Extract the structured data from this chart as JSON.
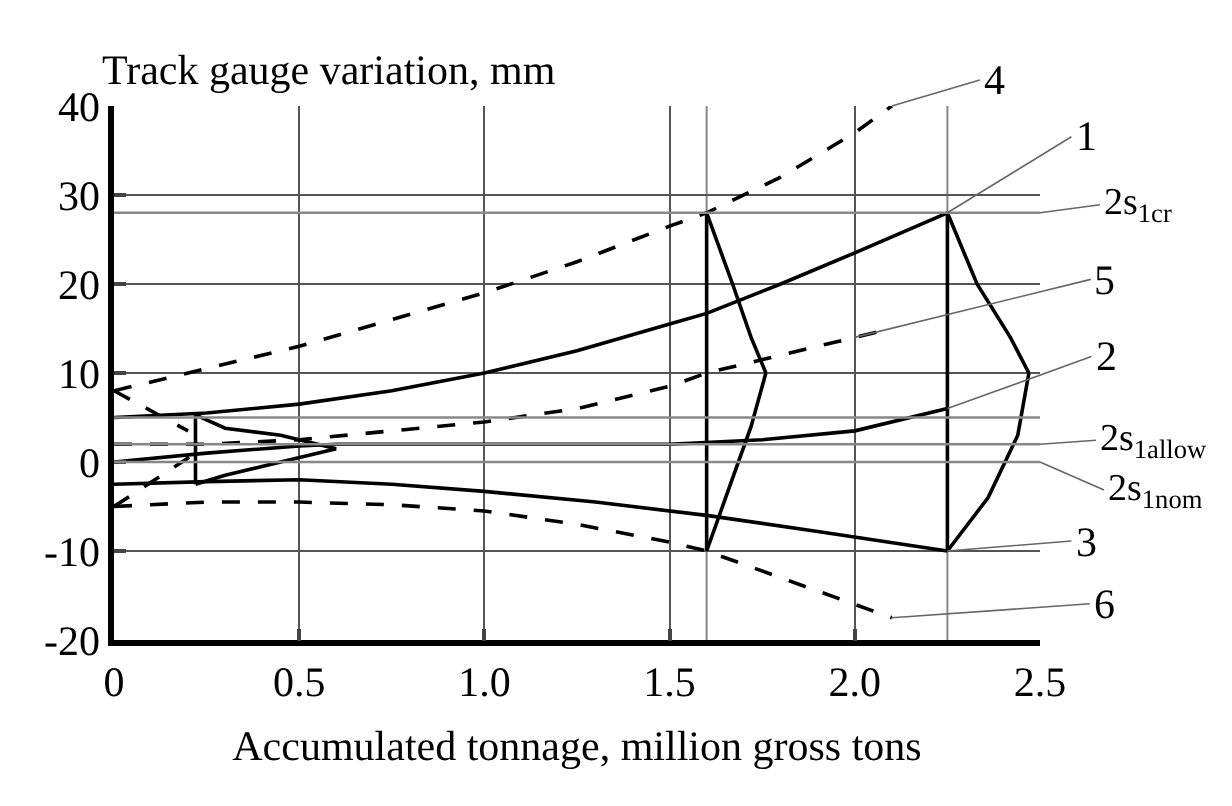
{
  "chart_data": {
    "type": "line",
    "ylabel": "Track gauge variation, mm",
    "xlabel": "Accumulated tonnage, million gross tons",
    "xlim": [
      0,
      2.5
    ],
    "ylim": [
      -20,
      40
    ],
    "xticks": [
      0,
      0.5,
      {
        "value": 1,
        "label": "1.0"
      },
      1.5,
      {
        "value": 2,
        "label": "2.0"
      },
      2.5
    ],
    "yticks": [
      -20,
      -10,
      0,
      10,
      20,
      30,
      40
    ],
    "grid": true,
    "marker": "none",
    "series": [
      {
        "color": "#000000",
        "line_style": "dashed",
        "x": [
          0,
          0.25,
          0.5,
          0.75,
          1.0,
          1.25,
          1.5,
          1.6,
          1.8,
          2.0,
          2.1
        ],
        "values": [
          8,
          10.5,
          13,
          16,
          19,
          22.5,
          26.5,
          28,
          32,
          37,
          40
        ]
      },
      {
        "color": "#000000",
        "line_style": "solid",
        "x": [
          0,
          0.25,
          0.5,
          0.75,
          1.0,
          1.25,
          1.5,
          1.6,
          1.8,
          2.0,
          2.25
        ],
        "values": [
          5,
          5.5,
          6.5,
          8,
          10,
          12.5,
          15.5,
          16.7,
          20,
          23.5,
          28
        ]
      },
      {
        "color": "#000000",
        "line_style": "dashed",
        "x": [
          0,
          0.25,
          0.5,
          0.75,
          1.0,
          1.25,
          1.5,
          1.6,
          1.8,
          2.0,
          2.1
        ],
        "values": [
          2,
          2,
          2.5,
          3.5,
          4.5,
          6,
          8.5,
          10,
          12,
          14,
          15
        ]
      },
      {
        "color": "#000000",
        "line_style": "solid",
        "x": [
          0,
          0.25,
          0.5,
          0.6,
          1.0,
          1.5,
          1.75,
          2.0,
          2.25
        ],
        "values": [
          0,
          1,
          1.8,
          2,
          2,
          2,
          2.5,
          3.5,
          6
        ]
      },
      {
        "color": "#000000",
        "line_style": "solid",
        "x": [
          0,
          0.25,
          0.5,
          0.75,
          1.0,
          1.3,
          1.6,
          1.9,
          2.25
        ],
        "values": [
          -2.5,
          -2.2,
          -2,
          -2.5,
          -3.3,
          -4.5,
          -6,
          -7.8,
          -10
        ]
      },
      {
        "color": "#000000",
        "line_style": "dashed",
        "x": [
          0,
          0.25,
          0.5,
          0.75,
          1.0,
          1.25,
          1.5,
          1.6,
          1.8,
          2.0,
          2.1
        ],
        "values": [
          -5,
          -4.5,
          -4.5,
          -4.8,
          -5.5,
          -7,
          -9,
          -10,
          -13,
          -16,
          -17.5
        ]
      },
      {
        "color": "#000000",
        "line_style": "dashed",
        "x": [
          0,
          0.2
        ],
        "values": [
          8,
          3.5
        ]
      },
      {
        "color": "#000000",
        "line_style": "dashed",
        "x": [
          0,
          0.22
        ],
        "values": [
          -5,
          1
        ]
      },
      {
        "color": "#000000",
        "line_style": "solid",
        "x": [
          0.22,
          0.22
        ],
        "values": [
          -2.5,
          5.3
        ]
      },
      {
        "color": "#000000",
        "line_style": "solid",
        "x": [
          0.22,
          0.3,
          0.45,
          0.6
        ],
        "values": [
          5.3,
          3.8,
          3,
          1.5
        ]
      },
      {
        "color": "#000000",
        "line_style": "solid",
        "x": [
          0.22,
          0.3,
          0.45,
          0.6
        ],
        "values": [
          -2.5,
          -1.5,
          0,
          1.5
        ]
      },
      {
        "color": "#000000",
        "line_style": "solid",
        "x": [
          1.6,
          1.6
        ],
        "values": [
          -10,
          28
        ]
      },
      {
        "color": "#000000",
        "line_style": "solid",
        "x": [
          1.6,
          1.67,
          1.72,
          1.76
        ],
        "values": [
          28,
          20,
          14,
          10
        ]
      },
      {
        "color": "#000000",
        "line_style": "solid",
        "x": [
          1.6,
          1.66,
          1.72,
          1.76
        ],
        "values": [
          -10,
          -3,
          4,
          10
        ]
      },
      {
        "color": "#000000",
        "line_style": "solid",
        "x": [
          2.25,
          2.25
        ],
        "values": [
          -10,
          28
        ]
      },
      {
        "color": "#000000",
        "line_style": "solid",
        "x": [
          2.25,
          2.33,
          2.42,
          2.47
        ],
        "values": [
          28,
          20,
          14,
          10
        ]
      },
      {
        "color": "#000000",
        "line_style": "solid",
        "x": [
          2.25,
          2.36,
          2.44,
          2.47
        ],
        "values": [
          -10,
          -4,
          3,
          10
        ]
      }
    ],
    "ref_lines": [
      {
        "axis": "y",
        "value": 28,
        "label": "2s$_{1cr}$",
        "color": "#888888"
      },
      {
        "axis": "y",
        "value": 5,
        "label": null,
        "color": "#888888"
      },
      {
        "axis": "y",
        "value": 2,
        "label": "2s$_{1allow}$",
        "color": "#888888"
      },
      {
        "axis": "y",
        "value": 0,
        "label": "2s$_{1nom}$",
        "color": "#888888"
      },
      {
        "axis": "x",
        "value": 1.6,
        "label": null,
        "color": "#888888"
      },
      {
        "axis": "x",
        "value": 2.25,
        "label": null,
        "color": "#888888"
      }
    ],
    "annotations": [
      {
        "text": "4",
        "x": 2.1,
        "y": 40
      },
      {
        "text": "1",
        "x": 2.25,
        "y": 28
      },
      {
        "text": "5",
        "x": 2.0,
        "y": 14
      },
      {
        "text": "2",
        "x": 2.25,
        "y": 6
      },
      {
        "text": "3",
        "x": 2.25,
        "y": -10
      },
      {
        "text": "6",
        "x": 2.1,
        "y": -17.5
      }
    ]
  }
}
